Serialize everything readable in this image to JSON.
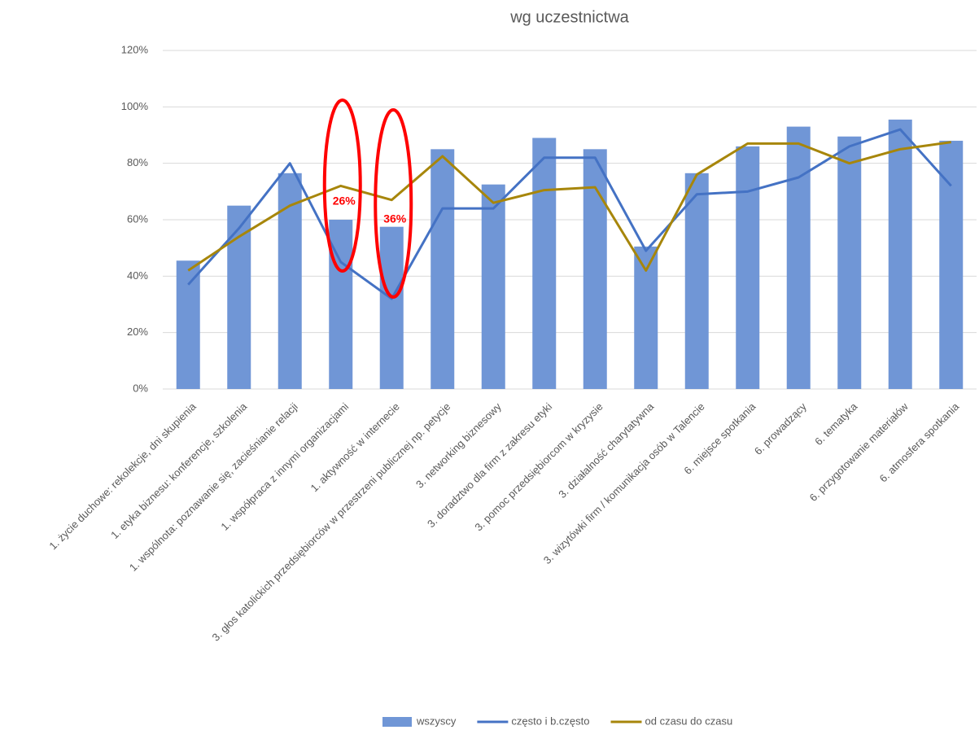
{
  "chart_data": {
    "type": "bar_line",
    "title": "wg uczestnictwa",
    "categories": [
      "1. życie duchowe: rekolekcje, dni skupienia",
      "1. etyka biznesu: konferencje, szkolenia",
      "1. wspólnota: poznawanie się, zacieśnianie relacji",
      "1. współpraca z innymi organizacjami",
      "1. aktywność w internecie",
      "3. głos katolickich przedsiębiorców w przestrzeni publicznej np. petycje",
      "3. networking biznesowy",
      "3. doradztwo dla firm z zakresu etyki",
      "3. pomoc przedsiębiorcom w kryzysie",
      "3. działalność charytatywna",
      "3. wizytówki firm / komunikacja osób w Talencie",
      "6. miejsce spotkania",
      "6. prowadzący",
      "6. tematyka",
      "6. przygotowanie materiałów",
      "6. atmosfera spotkania"
    ],
    "series": [
      {
        "name": "wszyscy",
        "type": "bar",
        "color": "#7096d6",
        "values": [
          45.5,
          65,
          76.5,
          60,
          57.5,
          85,
          72.5,
          89,
          85,
          50.5,
          76.5,
          86,
          93,
          89.5,
          95.5,
          88
        ]
      },
      {
        "name": "często i b.często",
        "type": "line",
        "color": "#4472c4",
        "values": [
          37,
          57,
          80,
          45,
          32,
          64,
          64,
          82,
          82,
          49,
          69,
          70,
          75,
          86,
          92,
          72
        ]
      },
      {
        "name": "od czasu do czasu",
        "type": "line",
        "color": "#a7860b",
        "values": [
          42,
          54,
          65,
          72,
          67,
          82.5,
          66,
          70.5,
          71.5,
          42,
          76,
          87,
          87,
          80,
          85,
          87.5
        ]
      }
    ],
    "ylim": [
      0,
      120
    ],
    "yticks": [
      {
        "value": 0,
        "label": "0%"
      },
      {
        "value": 20,
        "label": "20%"
      },
      {
        "value": 40,
        "label": "40%"
      },
      {
        "value": 60,
        "label": "60%"
      },
      {
        "value": 80,
        "label": "80%"
      },
      {
        "value": 100,
        "label": "100%"
      },
      {
        "value": 120,
        "label": "120%"
      }
    ],
    "grid": true,
    "legend": "bottom",
    "annotations": [
      "26%",
      "36%"
    ]
  }
}
